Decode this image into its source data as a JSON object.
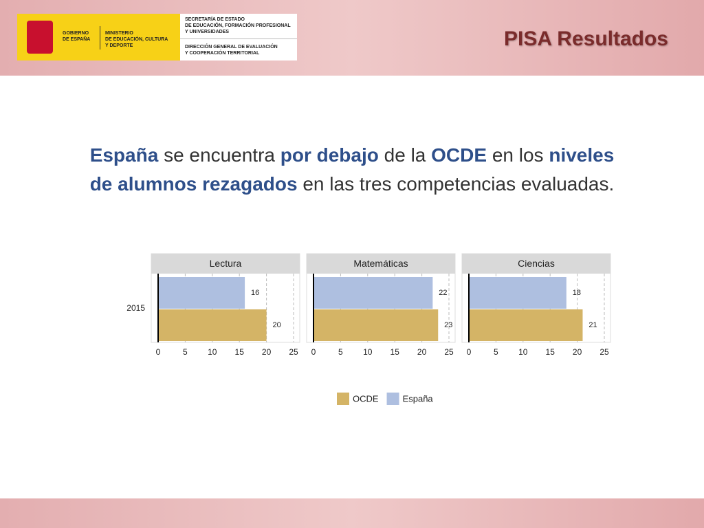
{
  "header": {
    "gobierno": [
      "GOBIERNO",
      "DE ESPAÑA"
    ],
    "ministerio": [
      "MINISTERIO",
      "DE EDUCACIÓN, CULTURA",
      "Y DEPORTE"
    ],
    "secretaria": [
      "SECRETARÍA DE ESTADO",
      "DE EDUCACIÓN, FORMACIÓN PROFESIONAL",
      "Y UNIVERSIDADES"
    ],
    "direccion": [
      "DIRECCIÓN GENERAL DE EVALUACIÓN",
      "Y COOPERACIÓN TERRITORIAL"
    ],
    "title": "PISA Resultados"
  },
  "statement": {
    "lines": [
      [
        {
          "text": "España",
          "emphasis": true
        },
        {
          "text": " se encuentra ",
          "emphasis": false
        },
        {
          "text": "por debajo",
          "emphasis": true
        },
        {
          "text": " de la ",
          "emphasis": false
        },
        {
          "text": "OCDE",
          "emphasis": true
        },
        {
          "text": " en los ",
          "emphasis": false
        },
        {
          "text": "niveles",
          "emphasis": true
        }
      ],
      [
        {
          "text": "de alumnos rezagados",
          "emphasis": true
        },
        {
          "text": " en las tres competencias evaluadas.",
          "emphasis": false
        }
      ]
    ]
  },
  "chart_data": [
    {
      "type": "bar",
      "orientation": "horizontal",
      "title": "Lectura",
      "categories": [
        "2015"
      ],
      "series": [
        {
          "name": "OCDE",
          "color": "#d4b466",
          "values": [
            20
          ]
        },
        {
          "name": "España",
          "color": "#aebfe0",
          "values": [
            16
          ]
        }
      ],
      "xlim": [
        0,
        25
      ],
      "xticks": [
        0,
        5,
        10,
        15,
        20,
        25
      ],
      "grid": true
    },
    {
      "type": "bar",
      "orientation": "horizontal",
      "title": "Matemáticas",
      "series": [
        {
          "color": "#d4b466",
          "values": [
            23
          ]
        },
        {
          "color": "#aebfe0",
          "values": [
            22
          ]
        }
      ],
      "xlim": [
        0,
        25
      ],
      "xticks": [
        0,
        5,
        10,
        15,
        20,
        25
      ],
      "grid": true
    },
    {
      "type": "bar",
      "orientation": "horizontal",
      "title": "Ciencias",
      "series": [
        {
          "color": "#d4b466",
          "values": [
            21
          ]
        },
        {
          "color": "#aebfe0",
          "values": [
            18
          ]
        }
      ],
      "xlim": [
        0,
        25
      ],
      "xticks": [
        0,
        5,
        10,
        15,
        20,
        25
      ],
      "grid": true
    }
  ]
}
